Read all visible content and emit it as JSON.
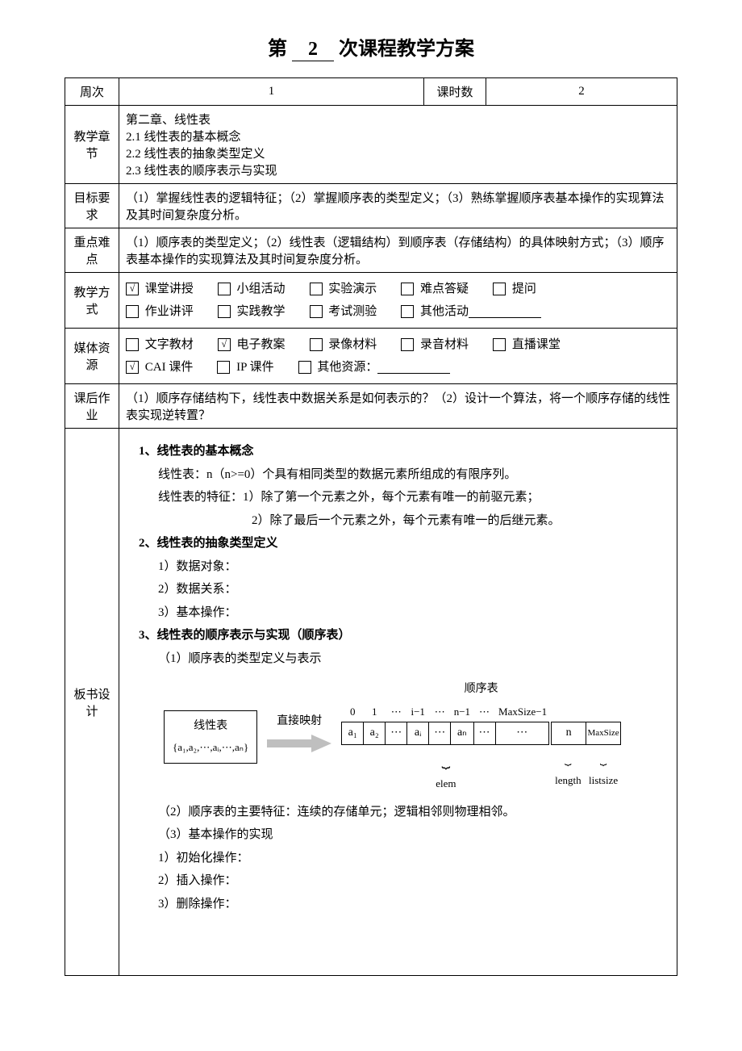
{
  "title": {
    "prefix": "第",
    "num": "2",
    "suffix": "次课程教学方案"
  },
  "rows": {
    "week": {
      "label": "周次",
      "value": "1",
      "hours_label": "课时数",
      "hours_value": "2"
    },
    "chapter": {
      "label": "教学章节",
      "lines": [
        "第二章、线性表",
        "2.1 线性表的基本概念",
        "2.2 线性表的抽象类型定义",
        "2.3 线性表的顺序表示与实现"
      ]
    },
    "goal": {
      "label": "目标要求",
      "text": "（1）掌握线性表的逻辑特征；（2）掌握顺序表的类型定义；（3）熟练掌握顺序表基本操作的实现算法及其时间复杂度分析。"
    },
    "keypoint": {
      "label": "重点难点",
      "text": "（1）顺序表的类型定义；（2）线性表（逻辑结构）到顺序表（存储结构）的具体映射方式；（3）顺序表基本操作的实现算法及其时间复杂度分析。"
    },
    "method": {
      "label": "教学方式",
      "row1": [
        {
          "label": "课堂讲授",
          "checked": true
        },
        {
          "label": "小组活动",
          "checked": false
        },
        {
          "label": "实验演示",
          "checked": false
        },
        {
          "label": "难点答疑",
          "checked": false
        },
        {
          "label": "提问",
          "checked": false
        }
      ],
      "row2": [
        {
          "label": "作业讲评",
          "checked": false
        },
        {
          "label": "实践教学",
          "checked": false
        },
        {
          "label": "考试测验",
          "checked": false
        },
        {
          "label": "其他活动",
          "checked": false,
          "blank": true
        }
      ]
    },
    "media": {
      "label": "媒体资源",
      "row1": [
        {
          "label": "文字教材",
          "checked": false
        },
        {
          "label": "电子教案",
          "checked": true
        },
        {
          "label": "录像材料",
          "checked": false
        },
        {
          "label": "录音材料",
          "checked": false
        },
        {
          "label": "直播课堂",
          "checked": false
        }
      ],
      "row2": [
        {
          "label": "CAI 课件",
          "checked": true
        },
        {
          "label": "IP 课件",
          "checked": false
        },
        {
          "label": "其他资源：",
          "checked": false,
          "blank": true
        }
      ]
    },
    "homework": {
      "label": "课后作业",
      "text": "（1）顺序存储结构下，线性表中数据关系是如何表示的？（2）设计一个算法，将一个顺序存储的线性表实现逆转置？"
    },
    "board": {
      "label": "板书设计",
      "sec1_title": "1、线性表的基本概念",
      "sec1_l1": "线性表：n（n>=0）个具有相同类型的数据元素所组成的有限序列。",
      "sec1_l2": "线性表的特征：1）除了第一个元素之外，每个元素有唯一的前驱元素；",
      "sec1_l3": "2）除了最后一个元素之外，每个元素有唯一的后继元素。",
      "sec2_title": "2、线性表的抽象类型定义",
      "sec2_i1": "1）数据对象：",
      "sec2_i2": "2）数据关系：",
      "sec2_i3": "3）基本操作：",
      "sec3_title": "3、线性表的顺序表示与实现（顺序表）",
      "sec3_sub1": "（1）顺序表的类型定义与表示",
      "diagram": {
        "linear_label": "线性表",
        "linear_set": "{a₁,a₂,⋯,aᵢ,⋯,aₙ}",
        "map_label": "直接映射",
        "seq_label": "顺序表",
        "idx": [
          "0",
          "1",
          "⋯",
          "i−1",
          "⋯",
          "n−1",
          "⋯",
          "MaxSize−1"
        ],
        "cells": [
          "a₁",
          "a₂",
          "⋯",
          "aᵢ",
          "⋯",
          "aₙ",
          "⋯",
          "⋯"
        ],
        "extra_n": "n",
        "extra_max": "MaxSize",
        "brace_elem": "elem",
        "brace_length": "length",
        "brace_listsize": "listsize",
        "arrow_color": "#bfbfbf"
      },
      "sec3_sub2": "（2）顺序表的主要特征：连续的存储单元；逻辑相邻则物理相邻。",
      "sec3_sub3": "（3）基本操作的实现",
      "sec3_op1": "1）初始化操作：",
      "sec3_op2": "2）插入操作：",
      "sec3_op3": "3）删除操作："
    }
  }
}
